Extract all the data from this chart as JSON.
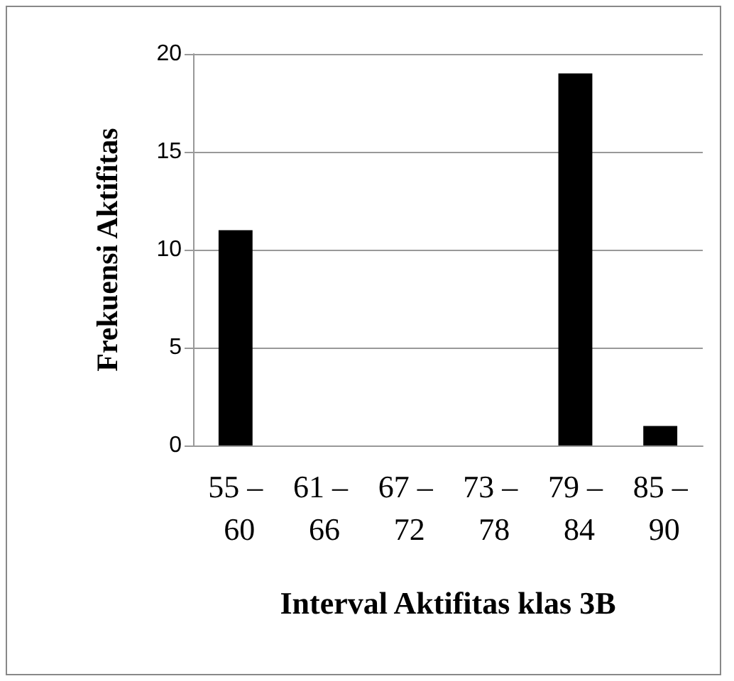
{
  "chart_data": {
    "type": "bar",
    "xlabel": "Interval Aktifitas klas 3B",
    "ylabel": "Frekuensi Aktifitas",
    "categories": [
      "55 – 60",
      "61 – 66",
      "67 – 72",
      "73 – 78",
      "79 – 84",
      "85 – 90"
    ],
    "values": [
      11,
      0,
      0,
      0,
      19,
      1
    ],
    "color": "#000000",
    "ylim": [
      0,
      20
    ],
    "yticks": [
      0,
      5,
      10,
      15,
      20
    ],
    "grid": "y"
  }
}
